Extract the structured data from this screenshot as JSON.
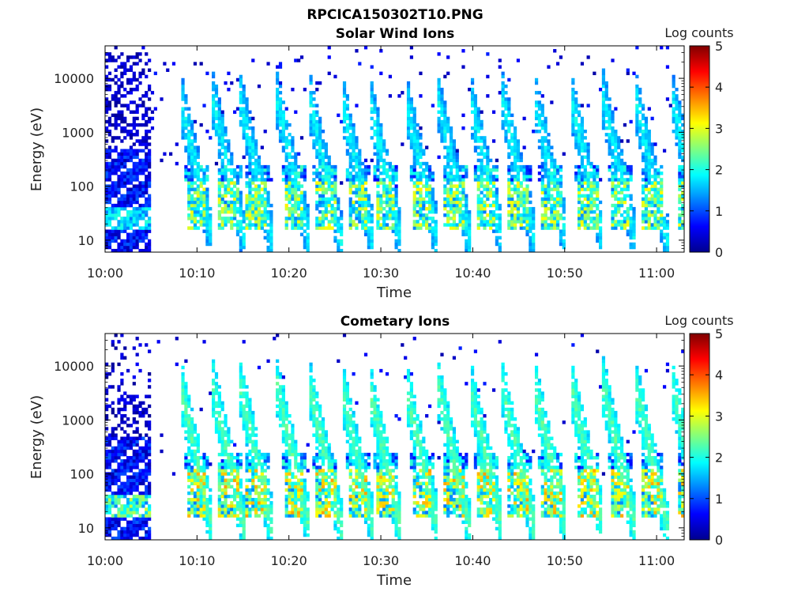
{
  "figure_title": "RPCICA150302T10.PNG",
  "chart_data": [
    {
      "type": "heatmap",
      "title": "Solar Wind Ions",
      "xlabel": "Time",
      "ylabel": "Energy (eV)",
      "x_ticks": [
        "10:00",
        "10:10",
        "10:20",
        "10:30",
        "10:40",
        "10:50",
        "11:00"
      ],
      "x_range_min": [
        0,
        63
      ],
      "y_ticks": [
        "10",
        "100",
        "1000",
        "10000"
      ],
      "y_scale": "log",
      "y_range": [
        6,
        40000
      ],
      "colorbar": {
        "label": "Log counts",
        "ticks": [
          "0",
          "1",
          "2",
          "3",
          "4",
          "5"
        ],
        "range": [
          0,
          5
        ],
        "colormap": "jet"
      },
      "features": {
        "cycle_start_min": [
          8.5,
          12,
          15,
          19,
          22.5,
          26,
          29,
          33,
          36.5,
          40,
          43.5,
          47,
          51,
          54.5,
          58,
          62
        ],
        "peak_log_counts": 3.2,
        "low_energy_band_eV": [
          15,
          60
        ]
      }
    },
    {
      "type": "heatmap",
      "title": "Cometary Ions",
      "xlabel": "Time",
      "ylabel": "Energy (eV)",
      "x_ticks": [
        "10:00",
        "10:10",
        "10:20",
        "10:30",
        "10:40",
        "10:50",
        "11:00"
      ],
      "x_range_min": [
        0,
        63
      ],
      "y_ticks": [
        "10",
        "100",
        "1000",
        "10000"
      ],
      "y_scale": "log",
      "y_range": [
        6,
        40000
      ],
      "colorbar": {
        "label": "Log counts",
        "ticks": [
          "0",
          "1",
          "2",
          "3",
          "4",
          "5"
        ],
        "range": [
          0,
          5
        ],
        "colormap": "jet"
      },
      "features": {
        "cycle_start_min": [
          8.5,
          12,
          15,
          19,
          22.5,
          26,
          29,
          33,
          36.5,
          40,
          43.5,
          47,
          51,
          54.5,
          58,
          62
        ],
        "peak_log_counts": 3.6,
        "low_energy_band_eV": [
          15,
          60
        ]
      }
    }
  ]
}
